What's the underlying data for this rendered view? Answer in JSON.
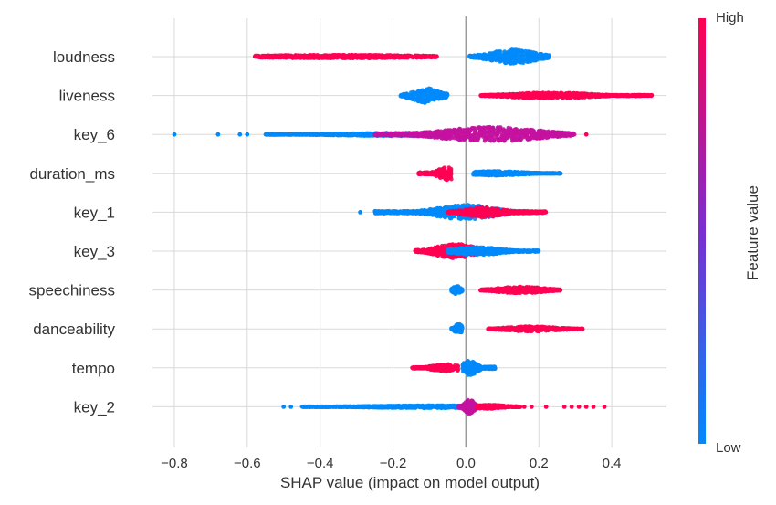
{
  "chart_data": {
    "type": "scatter",
    "subtype": "shap-beeswarm",
    "title": "",
    "xlabel": "SHAP value (impact on model output)",
    "ylabel": "",
    "xlim": [
      -0.86,
      0.55
    ],
    "xticks": [
      -0.8,
      -0.6,
      -0.4,
      -0.2,
      0.0,
      0.2,
      0.4
    ],
    "xtick_labels": [
      "−0.8",
      "−0.6",
      "−0.4",
      "−0.2",
      "0.0",
      "0.2",
      "0.4"
    ],
    "grid": true,
    "colorbar": {
      "title": "Feature value",
      "high_label": "High",
      "low_label": "Low",
      "high_color": "#ff0052",
      "low_color": "#008afb"
    },
    "features": [
      {
        "name": "loudness",
        "clusters": [
          {
            "from": -0.58,
            "to": -0.08,
            "center": -0.35,
            "spread": 0.45,
            "width": 0.1,
            "color": "high"
          },
          {
            "from": 0.01,
            "to": 0.23,
            "center": 0.13,
            "spread": 0.12,
            "width": 0.42,
            "color": "low"
          }
        ],
        "outliers": [
          {
            "x": -0.08,
            "color": "high"
          }
        ]
      },
      {
        "name": "liveness",
        "clusters": [
          {
            "from": -0.18,
            "to": -0.05,
            "center": -0.11,
            "spread": 0.07,
            "width": 0.45,
            "color": "low"
          },
          {
            "from": 0.04,
            "to": 0.51,
            "center": 0.23,
            "spread": 0.2,
            "width": 0.18,
            "color": "high"
          }
        ],
        "outliers": []
      },
      {
        "name": "key_6",
        "clusters": [
          {
            "from": -0.55,
            "to": -0.05,
            "center": -0.15,
            "spread": 0.35,
            "width": 0.1,
            "color": "low"
          },
          {
            "from": -0.25,
            "to": 0.3,
            "center": 0.07,
            "spread": 0.25,
            "width": 0.45,
            "color": "mid"
          }
        ],
        "outliers": [
          {
            "x": -0.8,
            "color": "low"
          },
          {
            "x": -0.68,
            "color": "low"
          },
          {
            "x": -0.62,
            "color": "low"
          },
          {
            "x": -0.6,
            "color": "low"
          },
          {
            "x": 0.33,
            "color": "high"
          }
        ]
      },
      {
        "name": "duration_ms",
        "clusters": [
          {
            "from": -0.13,
            "to": -0.04,
            "center": -0.05,
            "spread": 0.05,
            "width": 0.4,
            "color": "high"
          },
          {
            "from": 0.02,
            "to": 0.26,
            "center": 0.08,
            "spread": 0.14,
            "width": 0.13,
            "color": "low"
          }
        ],
        "outliers": []
      },
      {
        "name": "key_1",
        "clusters": [
          {
            "from": -0.25,
            "to": 0.18,
            "center": 0.0,
            "spread": 0.15,
            "width": 0.45,
            "color": "low"
          },
          {
            "from": -0.05,
            "to": 0.22,
            "center": 0.05,
            "spread": 0.1,
            "width": 0.3,
            "color": "high"
          }
        ],
        "outliers": [
          {
            "x": -0.29,
            "color": "low"
          },
          {
            "x": 0.2,
            "color": "high"
          }
        ]
      },
      {
        "name": "key_3",
        "clusters": [
          {
            "from": -0.14,
            "to": 0.05,
            "center": -0.03,
            "spread": 0.1,
            "width": 0.45,
            "color": "high"
          },
          {
            "from": -0.05,
            "to": 0.2,
            "center": 0.03,
            "spread": 0.12,
            "width": 0.25,
            "color": "low"
          }
        ],
        "outliers": []
      },
      {
        "name": "speechiness",
        "clusters": [
          {
            "from": -0.04,
            "to": -0.01,
            "center": -0.025,
            "spread": 0.02,
            "width": 0.25,
            "color": "low"
          },
          {
            "from": 0.04,
            "to": 0.26,
            "center": 0.15,
            "spread": 0.12,
            "width": 0.2,
            "color": "high"
          }
        ],
        "outliers": []
      },
      {
        "name": "danceability",
        "clusters": [
          {
            "from": -0.04,
            "to": -0.01,
            "center": -0.02,
            "spread": 0.02,
            "width": 0.3,
            "color": "low"
          },
          {
            "from": 0.06,
            "to": 0.32,
            "center": 0.18,
            "spread": 0.13,
            "width": 0.15,
            "color": "high"
          }
        ],
        "outliers": []
      },
      {
        "name": "tempo",
        "clusters": [
          {
            "from": -0.15,
            "to": -0.02,
            "center": -0.05,
            "spread": 0.08,
            "width": 0.22,
            "color": "high"
          },
          {
            "from": -0.01,
            "to": 0.08,
            "center": 0.01,
            "spread": 0.04,
            "width": 0.45,
            "color": "low"
          }
        ],
        "outliers": []
      },
      {
        "name": "key_2",
        "clusters": [
          {
            "from": -0.45,
            "to": 0.0,
            "center": -0.1,
            "spread": 0.3,
            "width": 0.08,
            "color": "low"
          },
          {
            "from": -0.02,
            "to": 0.04,
            "center": 0.01,
            "spread": 0.025,
            "width": 0.45,
            "color": "mid"
          },
          {
            "from": 0.03,
            "to": 0.15,
            "center": 0.06,
            "spread": 0.08,
            "width": 0.12,
            "color": "high"
          }
        ],
        "outliers": [
          {
            "x": -0.5,
            "color": "low"
          },
          {
            "x": -0.48,
            "color": "low"
          },
          {
            "x": -0.42,
            "color": "low"
          },
          {
            "x": -0.4,
            "color": "low"
          },
          {
            "x": 0.14,
            "color": "high"
          },
          {
            "x": 0.16,
            "color": "high"
          },
          {
            "x": 0.18,
            "color": "high"
          },
          {
            "x": 0.22,
            "color": "high"
          },
          {
            "x": 0.27,
            "color": "high"
          },
          {
            "x": 0.29,
            "color": "high"
          },
          {
            "x": 0.31,
            "color": "high"
          },
          {
            "x": 0.33,
            "color": "high"
          },
          {
            "x": 0.35,
            "color": "high"
          },
          {
            "x": 0.38,
            "color": "high"
          }
        ]
      }
    ]
  }
}
